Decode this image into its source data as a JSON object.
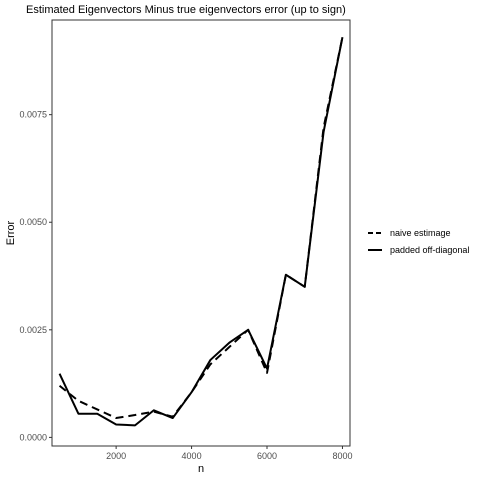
{
  "chart_data": {
    "type": "line",
    "title": "Estimated Eigenvectors Minus true eigenvectors error (up to sign)",
    "xlabel": "n",
    "ylabel": "Error",
    "xlim": [
      300,
      8200
    ],
    "ylim": [
      -0.0002,
      0.0097
    ],
    "x_ticks": [
      2000,
      4000,
      6000,
      8000
    ],
    "x_tick_labels": [
      "2000",
      "4000",
      "6000",
      "8000"
    ],
    "y_ticks": [
      0.0,
      0.0025,
      0.005,
      0.0075
    ],
    "y_tick_labels": [
      "0.0000",
      "0.0025",
      "0.0050",
      "0.0075"
    ],
    "grid": false,
    "legend_position": "right",
    "x": [
      500,
      1000,
      1500,
      2000,
      2500,
      3000,
      3500,
      4000,
      4500,
      5000,
      5500,
      6000,
      6500,
      7000,
      7500,
      8000
    ],
    "series": [
      {
        "name": "naive estimage",
        "linetype": "dashed",
        "values": [
          0.0012,
          0.00085,
          0.00065,
          0.00045,
          0.00052,
          0.0006,
          0.00048,
          0.00105,
          0.0017,
          0.0021,
          0.0025,
          0.0015,
          0.00378,
          0.0035,
          0.0072,
          0.0093
        ]
      },
      {
        "name": "padded off-diagonal",
        "linetype": "solid",
        "values": [
          0.00148,
          0.00055,
          0.00055,
          0.0003,
          0.00028,
          0.00063,
          0.00045,
          0.00105,
          0.0018,
          0.0022,
          0.0025,
          0.0016,
          0.00378,
          0.0035,
          0.0071,
          0.0093
        ]
      }
    ],
    "colors": {
      "line": "#000000",
      "panel_border": "#333333",
      "tick_text": "#4d4d4d"
    }
  }
}
